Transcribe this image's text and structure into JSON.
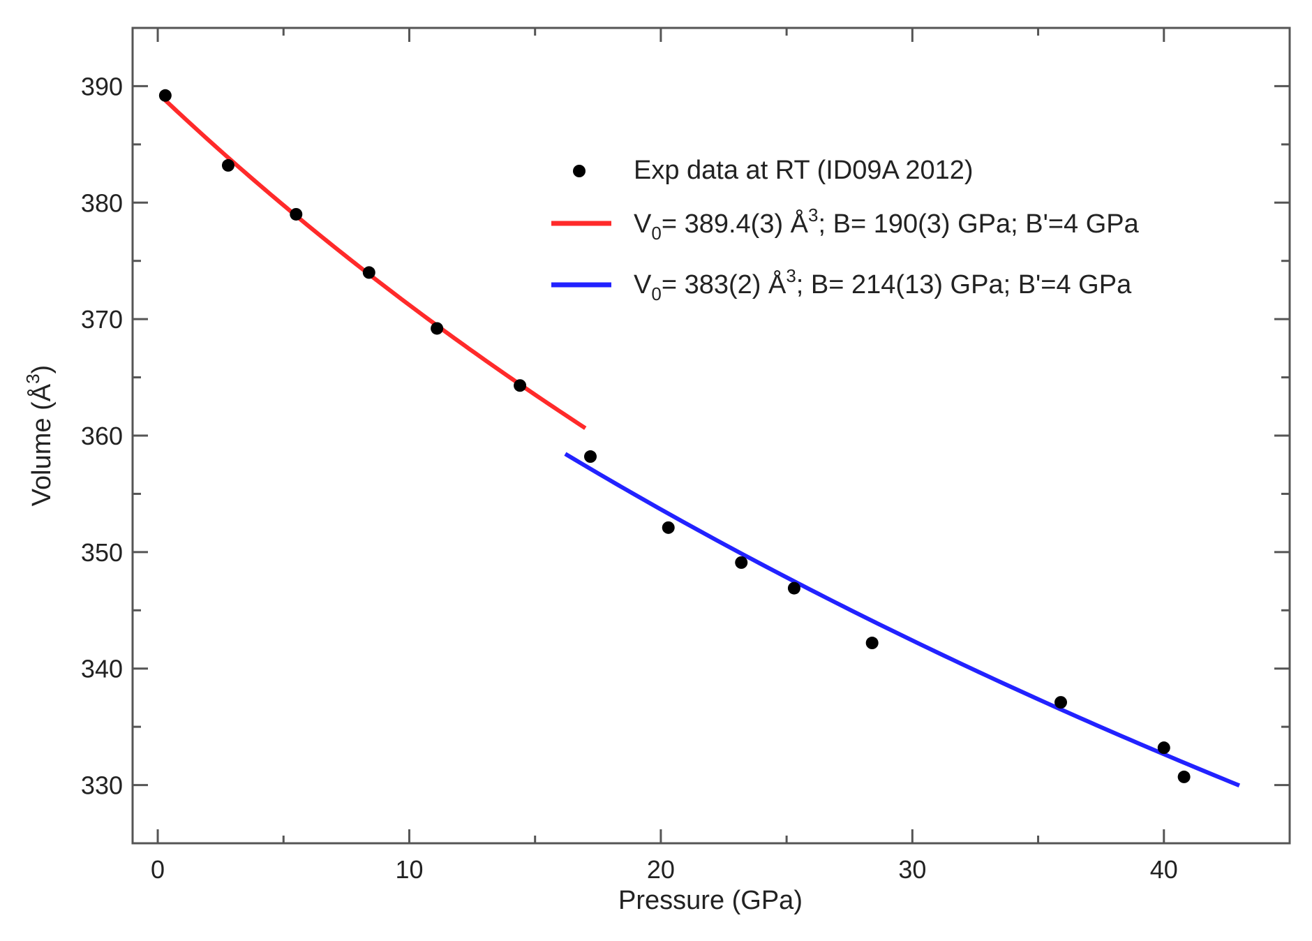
{
  "chart_data": {
    "type": "scatter",
    "title": "",
    "xlabel": "Pressure (GPa)",
    "ylabel": {
      "text": "Volume (Å",
      "sup": "3",
      "close": ")"
    },
    "xlim": [
      -1,
      45
    ],
    "ylim": [
      325,
      395
    ],
    "xticks": [
      0,
      10,
      20,
      30,
      40
    ],
    "yticks": [
      330,
      340,
      350,
      360,
      370,
      380,
      390
    ],
    "grid": false,
    "legend_position": "top-right",
    "series": [
      {
        "name": "Exp data at RT (ID09A 2012)",
        "kind": "points",
        "color": "#000000",
        "x": [
          0.3,
          2.8,
          5.5,
          8.4,
          11.1,
          14.4,
          17.2,
          20.3,
          23.2,
          25.3,
          28.4,
          35.9,
          40.0,
          40.8
        ],
        "y": [
          389.2,
          383.2,
          379.0,
          374.0,
          369.2,
          364.3,
          358.2,
          352.1,
          349.1,
          346.9,
          342.2,
          337.1,
          333.2,
          330.7
        ]
      },
      {
        "name": "fit-red",
        "kind": "line",
        "color": "#ff2a2a",
        "V0": 389.4,
        "B": 190,
        "Bp": 4,
        "prange": [
          0.3,
          17.0
        ],
        "legend": {
          "v": "V",
          "sub": "0",
          "mid": "= 389.4(3) Å",
          "sup": "3",
          "tail": "; B= 190(3) GPa; B'=4 GPa"
        }
      },
      {
        "name": "fit-blue",
        "kind": "line",
        "color": "#2222ff",
        "V0": 383,
        "B": 214,
        "Bp": 4,
        "prange": [
          16.2,
          43.0
        ],
        "legend": {
          "v": "V",
          "sub": "0",
          "mid": "= 383(2) Å",
          "sup": "3",
          "tail": "; B= 214(13) GPa; B'=4 GPa"
        }
      }
    ]
  }
}
